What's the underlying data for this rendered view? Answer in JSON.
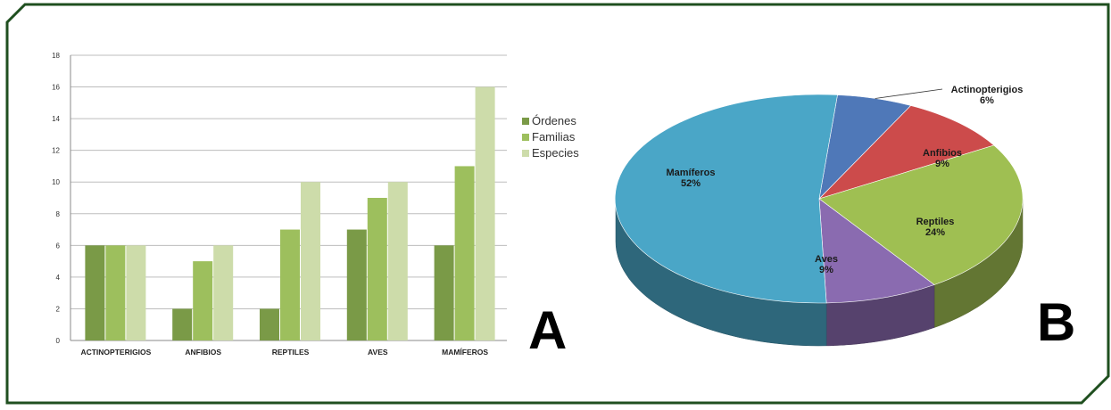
{
  "colors": {
    "frame": "#1f4f1f",
    "series": [
      "#7a9a47",
      "#9dbf5d",
      "#cddcaa"
    ],
    "slices": {
      "Actinopterigios": "#4f78b8",
      "Anfibios": "#cc4b4b",
      "Reptiles": "#9fbf52",
      "Aves": "#8a6bb0",
      "Mamiferos": "#4aa6c7"
    }
  },
  "chart_data": [
    {
      "id": "A",
      "panel_letter": "A",
      "type": "bar",
      "title": "",
      "xlabel": "",
      "ylabel": "",
      "ylim": [
        0,
        18
      ],
      "yticks": [
        "0",
        "2",
        "4",
        "6",
        "8",
        "10",
        "12",
        "14",
        "16",
        "18"
      ],
      "grid": true,
      "legend_position": "right",
      "categories": [
        "ACTINOPTERIGIOS",
        "ANFIBIOS",
        "REPTILES",
        "AVES",
        "MAMÍFEROS"
      ],
      "series": [
        {
          "name": "Órdenes",
          "values": [
            6,
            2,
            2,
            7,
            6
          ]
        },
        {
          "name": "Familias",
          "values": [
            6,
            5,
            7,
            9,
            11
          ]
        },
        {
          "name": "Especies",
          "values": [
            6,
            6,
            10,
            10,
            16
          ]
        }
      ]
    },
    {
      "id": "B",
      "panel_letter": "B",
      "type": "pie",
      "title": "",
      "style": "3d",
      "slices": [
        {
          "label": "Actinopterigios",
          "percent": "6%",
          "value": 6
        },
        {
          "label": "Anfibios",
          "percent": "9%",
          "value": 9
        },
        {
          "label": "Reptiles",
          "percent": "24%",
          "value": 24
        },
        {
          "label": "Aves",
          "percent": "9%",
          "value": 9
        },
        {
          "label": "Mamíferos",
          "percent": "52%",
          "value": 52
        }
      ]
    }
  ]
}
